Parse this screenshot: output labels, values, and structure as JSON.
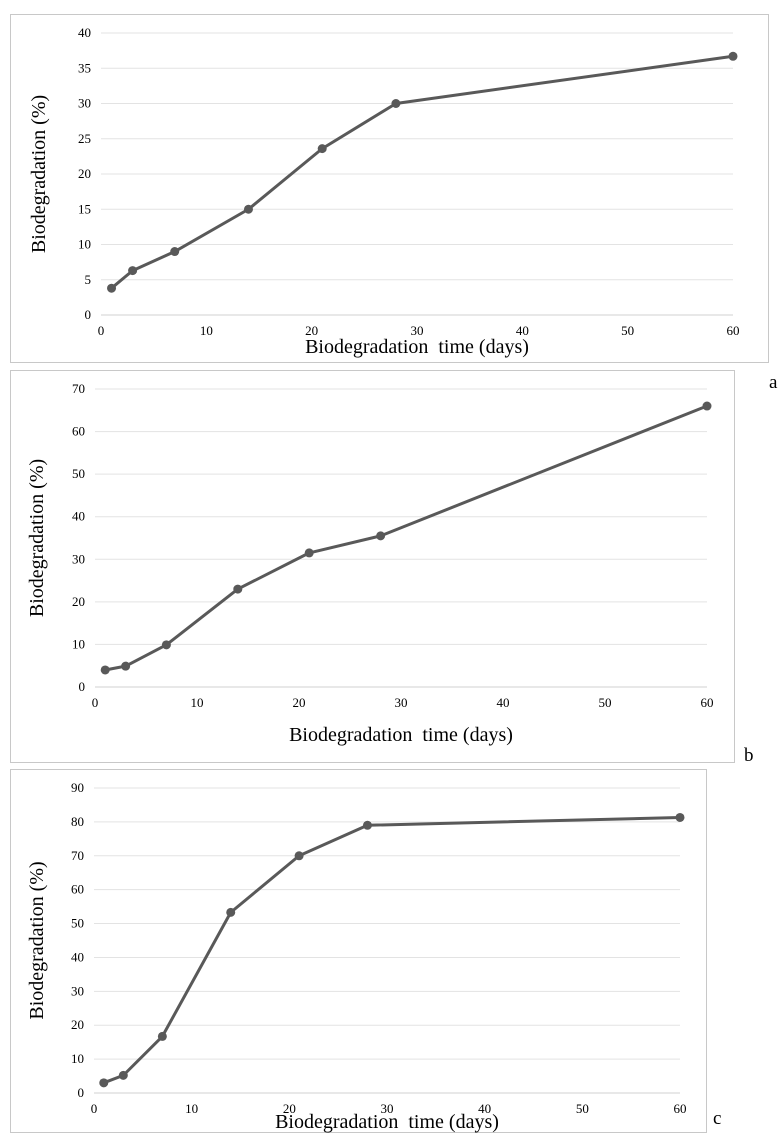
{
  "colors": {
    "series": "#595959",
    "grid": "#e3e3e3",
    "border": "#c8c8c8"
  },
  "chart_data": [
    {
      "type": "line",
      "panel_label": "a",
      "xlabel": "Biodegradation  time (days)",
      "ylabel": "Biodegradation (%)",
      "xlim": [
        0,
        60
      ],
      "ylim": [
        0,
        40
      ],
      "xticks": [
        0,
        10,
        20,
        30,
        40,
        50,
        60
      ],
      "yticks": [
        0,
        5,
        10,
        15,
        20,
        25,
        30,
        35,
        40
      ],
      "grid": true,
      "series": [
        {
          "x": [
            1,
            3,
            7,
            14,
            21,
            28,
            60
          ],
          "y": [
            3.8,
            6.3,
            9.0,
            15.0,
            23.6,
            30.0,
            36.7
          ]
        }
      ]
    },
    {
      "type": "line",
      "panel_label": "b",
      "xlabel": "Biodegradation  time (days)",
      "ylabel": "Biodegradation (%)",
      "xlim": [
        0,
        60
      ],
      "ylim": [
        0,
        70
      ],
      "xticks": [
        0,
        10,
        20,
        30,
        40,
        50,
        60
      ],
      "yticks": [
        0,
        10,
        20,
        30,
        40,
        50,
        60,
        70
      ],
      "grid": true,
      "series": [
        {
          "x": [
            1,
            3,
            7,
            14,
            21,
            28,
            60
          ],
          "y": [
            4.0,
            4.9,
            9.9,
            23.0,
            31.5,
            35.5,
            66.0
          ]
        }
      ]
    },
    {
      "type": "line",
      "panel_label": "c",
      "xlabel": "Biodegradation  time (days)",
      "ylabel": "Biodegradation (%)",
      "xlim": [
        0,
        60
      ],
      "ylim": [
        0,
        90
      ],
      "xticks": [
        0,
        10,
        20,
        30,
        40,
        50,
        60
      ],
      "yticks": [
        0,
        10,
        20,
        30,
        40,
        50,
        60,
        70,
        80,
        90
      ],
      "grid": true,
      "series": [
        {
          "x": [
            1,
            3,
            7,
            14,
            21,
            28,
            60
          ],
          "y": [
            3.0,
            5.2,
            16.7,
            53.3,
            70.0,
            79.0,
            81.3
          ]
        }
      ]
    }
  ]
}
